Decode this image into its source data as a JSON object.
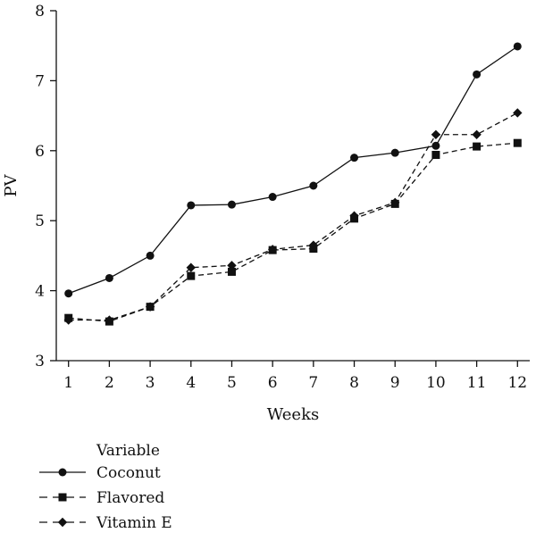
{
  "chart_data": {
    "type": "line",
    "xlabel": "Weeks",
    "ylabel": "PV",
    "x": [
      1,
      2,
      3,
      4,
      5,
      6,
      7,
      8,
      9,
      10,
      11,
      12
    ],
    "xlim": [
      0.7,
      12.3
    ],
    "ylim": [
      3,
      8
    ],
    "yticks": [
      3,
      4,
      5,
      6,
      7,
      8
    ],
    "grid": false,
    "legend": {
      "title": "Variable",
      "position": "bottom-left"
    },
    "series": [
      {
        "name": "Coconut",
        "marker": "circle",
        "line_style": "solid",
        "color": "#111111",
        "values": [
          3.96,
          4.18,
          4.5,
          5.22,
          5.23,
          5.34,
          5.5,
          5.9,
          5.97,
          6.07,
          7.09,
          7.49
        ]
      },
      {
        "name": "Flavored",
        "marker": "square",
        "line_style": "dashed",
        "color": "#111111",
        "values": [
          3.61,
          3.56,
          3.77,
          4.21,
          4.27,
          4.58,
          4.6,
          5.03,
          5.24,
          5.94,
          6.06,
          6.11
        ]
      },
      {
        "name": "Vitamin E",
        "marker": "diamond",
        "line_style": "dashed",
        "color": "#111111",
        "values": [
          3.58,
          3.58,
          3.77,
          4.33,
          4.36,
          4.59,
          4.65,
          5.07,
          5.26,
          6.23,
          6.23,
          6.54
        ]
      }
    ]
  }
}
